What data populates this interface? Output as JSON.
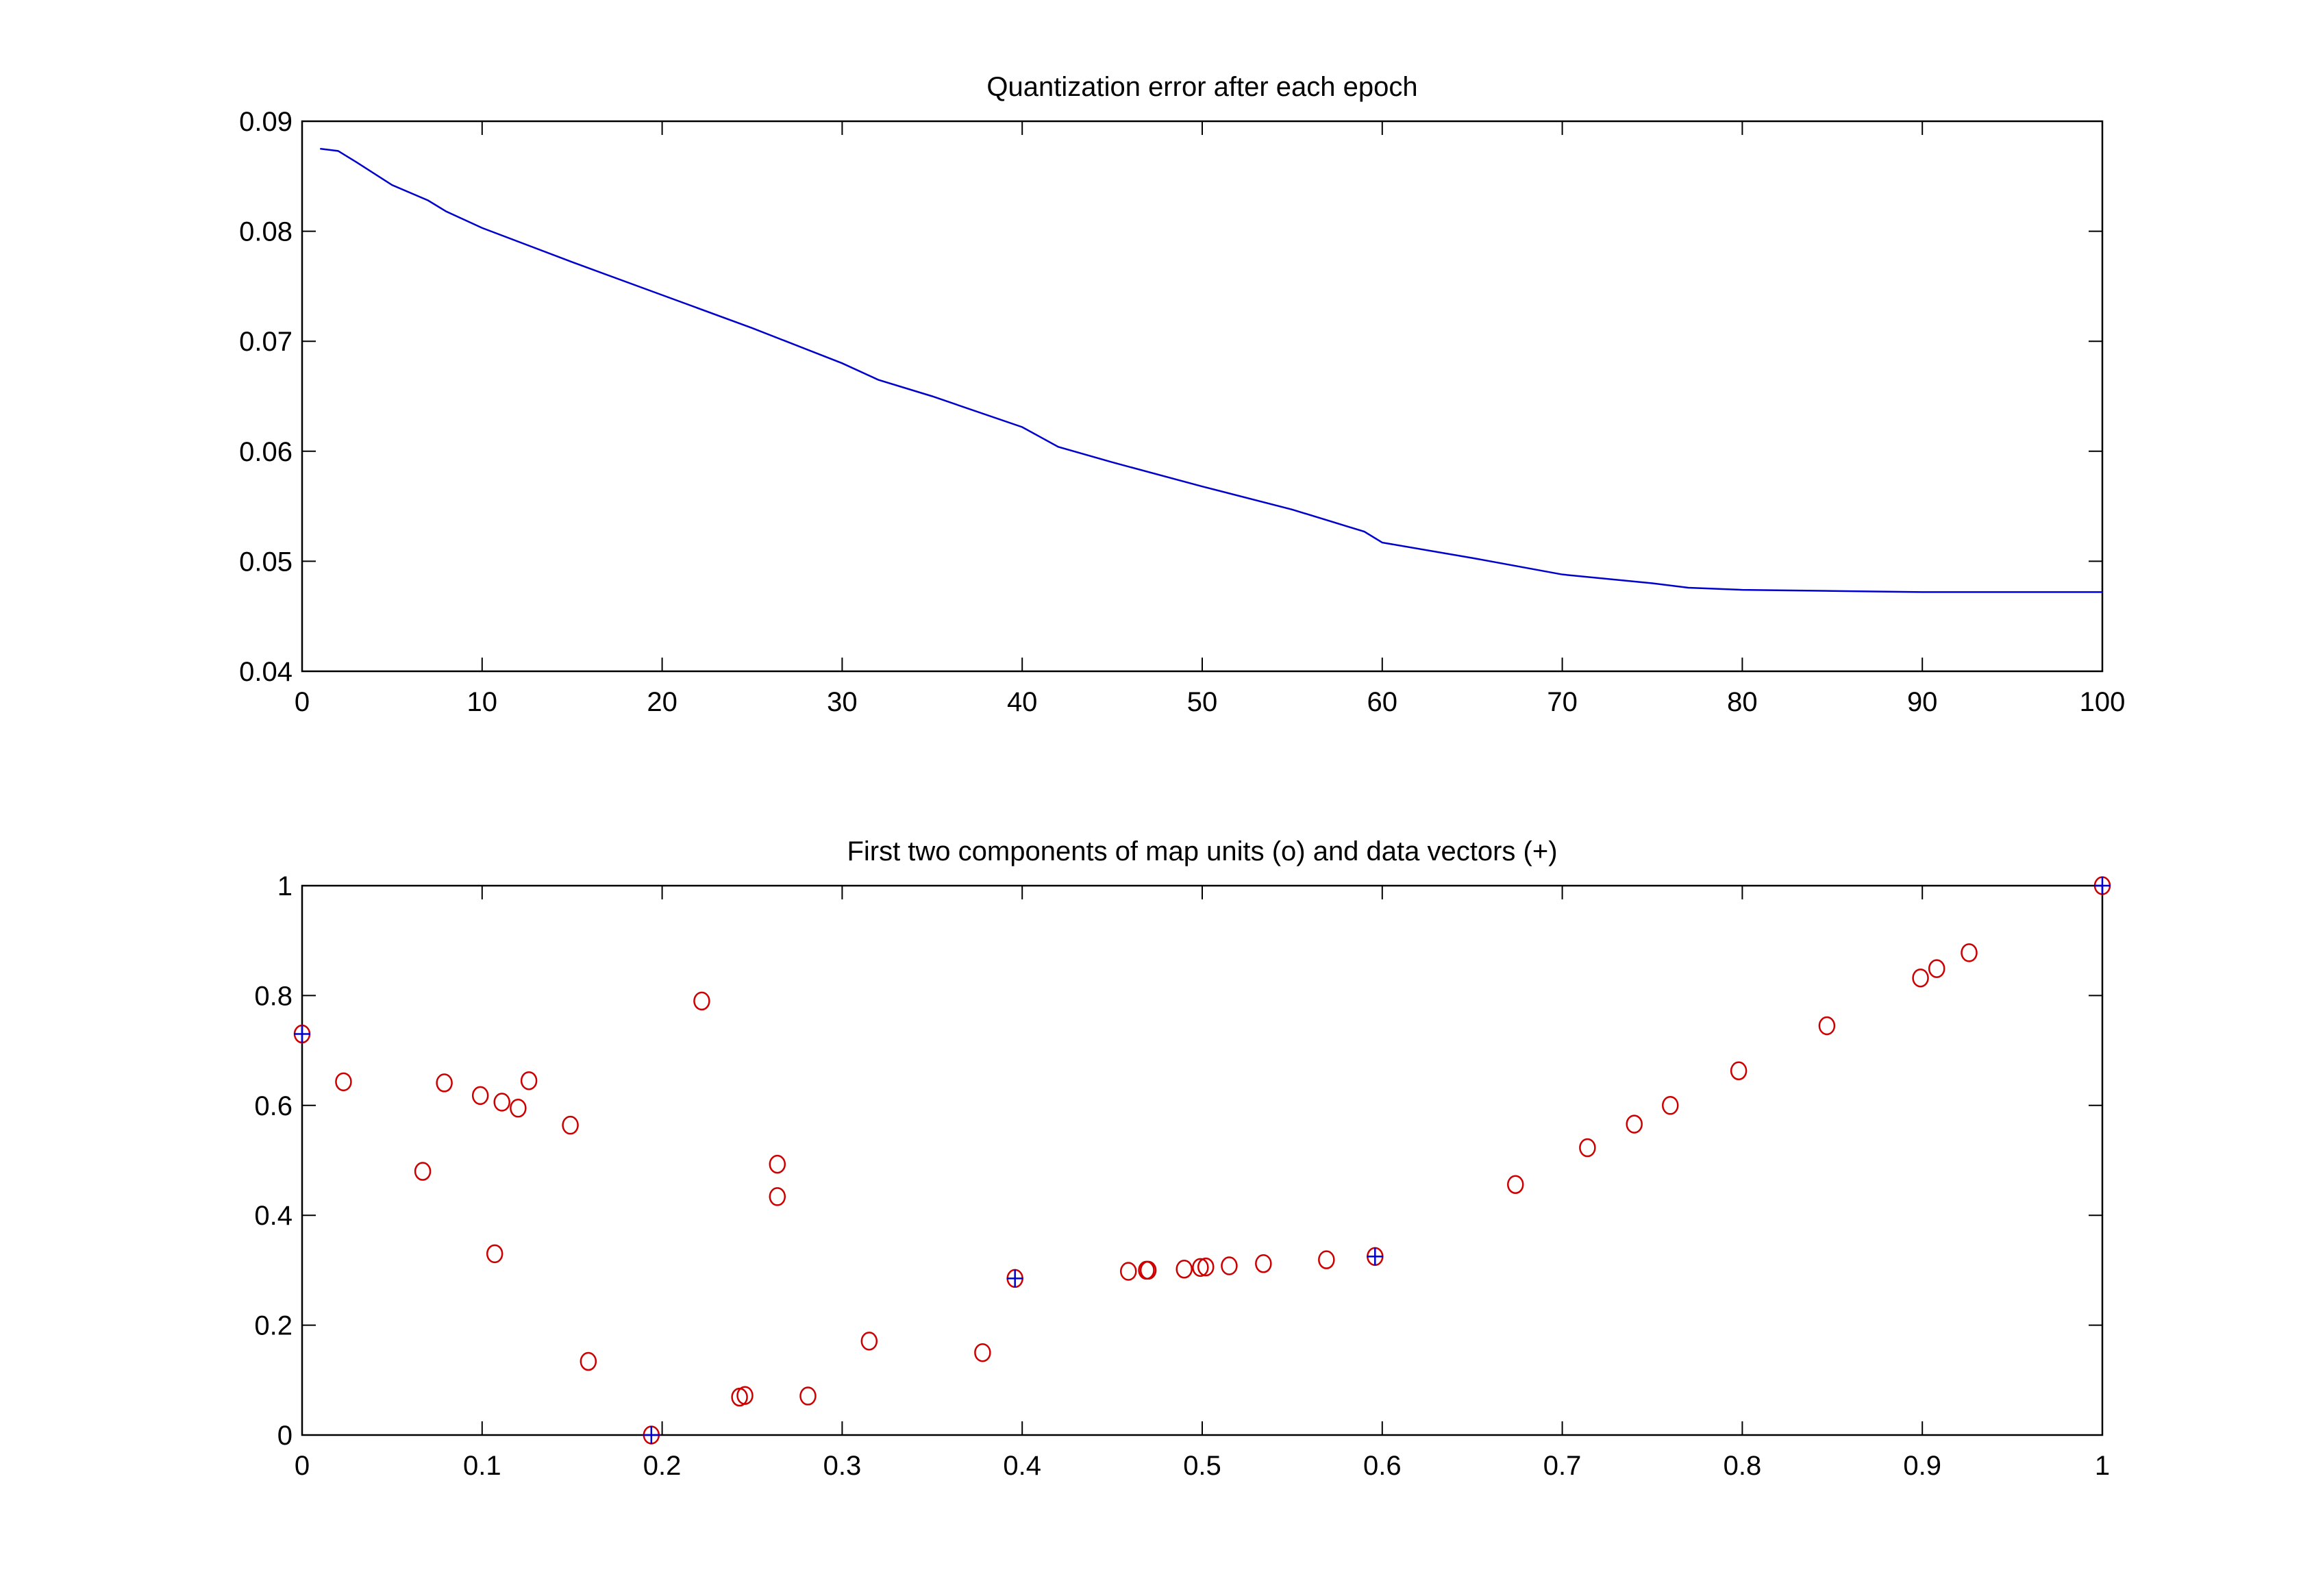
{
  "chart_data": [
    {
      "type": "line",
      "title": "Quantization error after each epoch",
      "xlabel": "",
      "ylabel": "",
      "xlim": [
        0,
        100
      ],
      "ylim": [
        0.04,
        0.09
      ],
      "xticks": [
        0,
        10,
        20,
        30,
        40,
        50,
        60,
        70,
        80,
        90,
        100
      ],
      "xtick_labels": [
        "0",
        "10",
        "20",
        "30",
        "40",
        "50",
        "60",
        "70",
        "80",
        "90",
        "100"
      ],
      "yticks": [
        0.04,
        0.05,
        0.06,
        0.07,
        0.08,
        0.09
      ],
      "ytick_labels": [
        "0.04",
        "0.05",
        "0.06",
        "0.07",
        "0.08",
        "0.09"
      ],
      "grid": false,
      "series": [
        {
          "name": "quantization error",
          "color": "#0000cc",
          "x": [
            1,
            2,
            3,
            5,
            7,
            8,
            10,
            15,
            20,
            25,
            30,
            32,
            35,
            40,
            42,
            45,
            50,
            55,
            58,
            59,
            60,
            65,
            70,
            75,
            77,
            80,
            85,
            90,
            100
          ],
          "y": [
            0.0875,
            0.0873,
            0.0863,
            0.0842,
            0.0828,
            0.0818,
            0.0803,
            0.0772,
            0.0742,
            0.0712,
            0.068,
            0.0665,
            0.065,
            0.0622,
            0.0604,
            0.059,
            0.0568,
            0.0547,
            0.0532,
            0.0527,
            0.0517,
            0.0503,
            0.0488,
            0.048,
            0.0476,
            0.0474,
            0.0473,
            0.0472,
            0.0472
          ]
        }
      ]
    },
    {
      "type": "scatter",
      "title": "First two components of map units (o) and data vectors (+)",
      "xlabel": "",
      "ylabel": "",
      "xlim": [
        0,
        1
      ],
      "ylim": [
        0,
        1
      ],
      "xticks": [
        0,
        0.1,
        0.2,
        0.3,
        0.4,
        0.5,
        0.6,
        0.7,
        0.8,
        0.9,
        1
      ],
      "xtick_labels": [
        "0",
        "0.1",
        "0.2",
        "0.3",
        "0.4",
        "0.5",
        "0.6",
        "0.7",
        "0.8",
        "0.9",
        "1"
      ],
      "yticks": [
        0,
        0.2,
        0.4,
        0.6,
        0.8,
        1
      ],
      "ytick_labels": [
        "0",
        "0.2",
        "0.4",
        "0.6",
        "0.8",
        "1"
      ],
      "grid": false,
      "series": [
        {
          "name": "map units (o)",
          "marker": "o",
          "color": "#cc0000",
          "x": [
            0,
            0.023,
            0.067,
            0.079,
            0.099,
            0.111,
            0.12,
            0.126,
            0.149,
            0.107,
            0.159,
            0.194,
            0.222,
            0.264,
            0.264,
            0.243,
            0.246,
            0.281,
            0.315,
            0.378,
            0.396,
            0.459,
            0.469,
            0.47,
            0.49,
            0.499,
            0.502,
            0.515,
            0.534,
            0.569,
            0.596,
            0.674,
            0.714,
            0.74,
            0.76,
            0.798,
            0.847,
            0.899,
            0.908,
            0.926,
            1
          ],
          "y": [
            0.73,
            0.643,
            0.48,
            0.641,
            0.618,
            0.606,
            0.595,
            0.645,
            0.564,
            0.33,
            0.134,
            0.0,
            0.79,
            0.493,
            0.434,
            0.069,
            0.072,
            0.071,
            0.171,
            0.15,
            0.285,
            0.298,
            0.3,
            0.3,
            0.302,
            0.305,
            0.306,
            0.308,
            0.312,
            0.319,
            0.325,
            0.456,
            0.523,
            0.566,
            0.6,
            0.663,
            0.745,
            0.832,
            0.849,
            0.878,
            1.0
          ]
        },
        {
          "name": "data vectors (+)",
          "marker": "+",
          "color": "#0000cc",
          "x": [
            0,
            0.194,
            0.396,
            0.596,
            1
          ],
          "y": [
            0.73,
            0.0,
            0.285,
            0.325,
            1.0
          ]
        }
      ]
    }
  ]
}
